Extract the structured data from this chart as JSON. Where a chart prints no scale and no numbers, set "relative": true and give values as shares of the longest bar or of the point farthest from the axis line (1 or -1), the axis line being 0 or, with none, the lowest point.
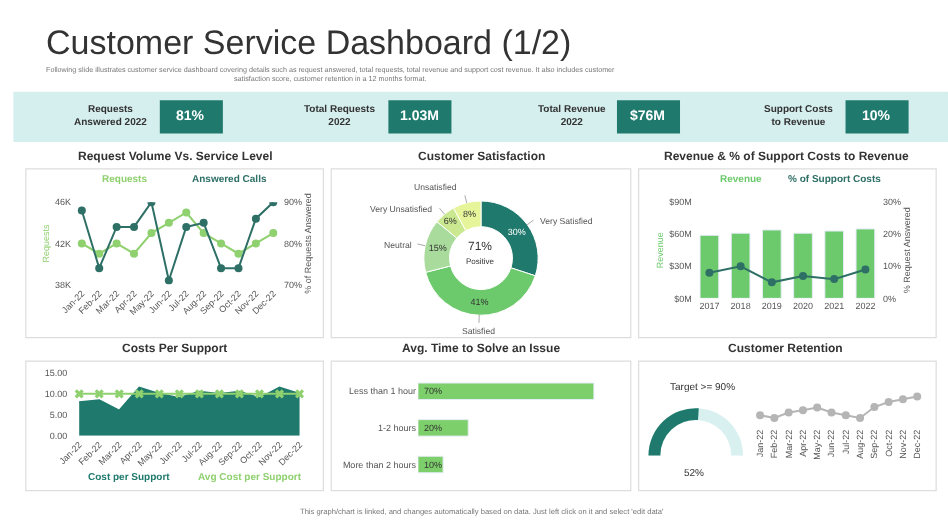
{
  "chart_data": [
    {
      "type": "other",
      "title": "Customer Service Dashboard (1/2)",
      "subtitle": "Following slide illustrates customer service dashboard covering details such as request answered, total requests, total revenue and support cost revenue. It also includes customer satisfaction score, customer retention in a 12 months format.",
      "annotations": [
        "Requests Answered 2022",
        "81%",
        "Total Requests 2022",
        "1.03M",
        "Total Revenue 2022",
        "$76M",
        "Support Costs to Revenue",
        "10%"
      ]
    },
    {
      "type": "line",
      "title": "Request Volume Vs. Service Level",
      "ylabel": "Requests",
      "y2label": "% of Requests Answered",
      "legend": "top",
      "marker": "circle",
      "categories": [
        "Jan-22",
        "Feb-22",
        "Mar-22",
        "Apr-22",
        "May-22",
        "Jun-22",
        "Jul-22",
        "Aug-22",
        "Sep-22",
        "Oct-22",
        "Nov-22",
        "Dec-22"
      ],
      "ylim": [
        38000,
        46000
      ],
      "yticks": [
        {
          "value": 38000,
          "label": "38K"
        },
        {
          "value": 42000,
          "label": "42K"
        },
        {
          "value": 46000,
          "label": "46K"
        }
      ],
      "y2lim": [
        70,
        90
      ],
      "y2ticks": [
        {
          "value": 70,
          "label": "70%"
        },
        {
          "value": 80,
          "label": "80%"
        },
        {
          "value": 90,
          "label": "90%"
        }
      ],
      "series": [
        {
          "name": "Requests",
          "color": "#8fd06f",
          "values": [
            42000,
            41000,
            42000,
            41000,
            43000,
            44000,
            45000,
            43000,
            42000,
            41000,
            42000,
            43000
          ]
        },
        {
          "name": "Answered Calls",
          "color": "#2e6f66",
          "axis": "y2",
          "values": [
            88,
            74,
            84,
            84,
            90,
            71,
            84,
            85,
            74,
            74,
            86,
            90
          ]
        }
      ]
    },
    {
      "type": "donut",
      "title": "Customer Satisfaction",
      "value_labels": [
        "30%",
        "41%",
        "15%",
        "6%",
        "8%"
      ],
      "annotations": [
        "71%",
        "Positive"
      ],
      "categories": [
        "Very Satisfied",
        "Satisfied",
        "Neutral",
        "Very Unsatisfied",
        "Unsatisfied"
      ],
      "values": [
        30,
        41,
        15,
        6,
        8
      ],
      "colors": [
        "#1f7a6d",
        "#6cc96c",
        "#a9dc9c",
        "#c9e88f",
        "#e6f59a"
      ]
    },
    {
      "type": "bar",
      "title": "Revenue & % of Support Costs to Revenue",
      "ylabel": "Revenue",
      "y2label": "% Request Answered",
      "legend": "top",
      "categories": [
        "2017",
        "2018",
        "2019",
        "2020",
        "2021",
        "2022"
      ],
      "ylim": [
        0,
        90
      ],
      "yticks": [
        {
          "value": 0,
          "label": "$0M"
        },
        {
          "value": 30,
          "label": "$30M"
        },
        {
          "value": 60,
          "label": "$60M"
        },
        {
          "value": 90,
          "label": "$90M"
        }
      ],
      "y2lim": [
        0,
        30
      ],
      "y2ticks": [
        {
          "value": 0,
          "label": "0%"
        },
        {
          "value": 10,
          "label": "10%"
        },
        {
          "value": 20,
          "label": "20%"
        },
        {
          "value": 30,
          "label": "30%"
        }
      ],
      "series": [
        {
          "name": "Revenue",
          "color": "#6cc96c",
          "values": [
            59,
            61,
            64,
            61,
            63,
            65
          ]
        },
        {
          "name": "% of Support Costs",
          "color": "#2e6f66",
          "type": "line",
          "axis": "y2",
          "marker": "circle",
          "values": [
            8,
            10,
            5,
            7,
            6,
            9
          ]
        }
      ]
    },
    {
      "type": "area",
      "title": "Costs Per Support",
      "legend": "bottom",
      "categories": [
        "Jan-22",
        "Feb-22",
        "Mar-22",
        "Apr-22",
        "May-22",
        "Jun-22",
        "Jul-22",
        "Aug-22",
        "Sep-22",
        "Oct-22",
        "Nov-22",
        "Dec-22"
      ],
      "ylim": [
        0,
        15
      ],
      "yticks": [
        {
          "value": 0,
          "label": "0.00"
        },
        {
          "value": 5,
          "label": "5.00"
        },
        {
          "value": 10,
          "label": "10.00"
        },
        {
          "value": 15,
          "label": "15.00"
        }
      ],
      "series": [
        {
          "name": "Cost per Support",
          "color": "#1f7a6d",
          "values": [
            8,
            8.5,
            6,
            11.5,
            10,
            9,
            10.5,
            10,
            10.5,
            9,
            11.5,
            10
          ]
        },
        {
          "name": "Avg Cost per Support",
          "color": "#8fd06f",
          "type": "line",
          "marker": "cross",
          "values": [
            10,
            10,
            10,
            10,
            10,
            10,
            10,
            10,
            10,
            10,
            10,
            10
          ]
        }
      ]
    },
    {
      "type": "bar",
      "title": "Avg. Time to Solve an Issue",
      "orientation": "horizontal",
      "color": "#7ccf6a",
      "categories": [
        "Less than 1 hour",
        "1-2 hours",
        "More than 2 hours"
      ],
      "values": [
        70,
        20,
        10
      ],
      "value_labels": [
        "70%",
        "20%",
        "10%"
      ]
    },
    {
      "type": "other",
      "title": "Customer Retention",
      "values": [
        52
      ],
      "value_labels": [
        "52%"
      ],
      "color": "#1f7a6d",
      "annotations": [
        "Target >= 90%"
      ]
    },
    {
      "type": "line",
      "relative": true,
      "marker": "circle",
      "color": "#b5b5b5",
      "categories": [
        "Jan-22",
        "Feb-22",
        "Mar-22",
        "Apr-22",
        "May-22",
        "Jun-22",
        "Jul-22",
        "Aug-22",
        "Sep-22",
        "Oct-22",
        "Nov-22",
        "Dec-22"
      ],
      "values": [
        0.13,
        0,
        0.26,
        0.36,
        0.49,
        0.26,
        0.13,
        0,
        0.51,
        0.74,
        0.87,
        1
      ],
      "annotations": [
        "This graph/chart is linked, and changes automatically based on data. Just left click on it and select 'edit data'"
      ]
    }
  ]
}
